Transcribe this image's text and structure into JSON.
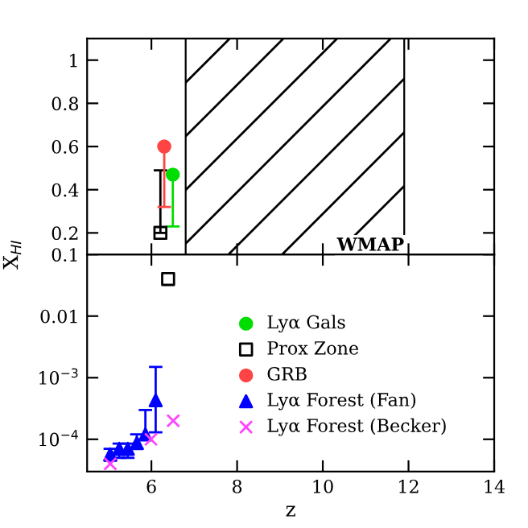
{
  "chart_data": [
    {
      "type": "scatter",
      "xlim": [
        4.5,
        14
      ],
      "xticks": [
        6,
        8,
        10,
        12,
        14
      ],
      "ylim": [
        0.1,
        1.1
      ],
      "yticks": [
        0.2,
        0.4,
        0.6,
        0.8,
        1
      ],
      "tick_labels": "y",
      "legend": "bottom",
      "bands": [
        {
          "axis": "x",
          "from": 6.8,
          "to": 11.9,
          "label": "WMAP"
        }
      ],
      "series": [
        {
          "name": "Lyα Gals",
          "color": "#00dd00",
          "marker": "circle",
          "x": [
            6.5
          ],
          "values": [
            0.47
          ],
          "errors": [
            [
              0.23,
              0.47
            ]
          ]
        },
        {
          "name": "Prox Zone",
          "color": "#000000",
          "marker": "square",
          "x": [
            6.21
          ],
          "values": [
            0.2
          ],
          "errors": [
            [
              0.2,
              0.49
            ]
          ]
        },
        {
          "name": "GRB",
          "color": "#ff4444",
          "marker": "circle",
          "x": [
            6.3
          ],
          "values": [
            0.6
          ],
          "errors": [
            [
              0.32,
              0.6
            ]
          ]
        }
      ]
    },
    {
      "type": "scatter",
      "xlabel": "z",
      "ylabel": "X$_{HI}$",
      "log": "y",
      "xlim": [
        4.5,
        14
      ],
      "xticks": [
        6,
        8,
        10,
        12,
        14
      ],
      "ylim": [
        3e-05,
        0.1
      ],
      "yticks": [
        0.1,
        0.01,
        {
          "value": 0.001,
          "label": "10$^{−3}$"
        },
        {
          "value": 0.0001,
          "label": "10$^{−4}$"
        }
      ],
      "legend": "center right",
      "series": [
        {
          "color": "#000000",
          "marker": "square",
          "x": [
            6.39
          ],
          "values": [
            0.04
          ]
        },
        {
          "name": "Lyα Forest (Fan)",
          "color": "#0000ff",
          "marker": "triangle",
          "x": [
            5.04,
            5.25,
            5.45,
            5.66,
            5.86,
            6.1
          ],
          "values": [
            5.7e-05,
            7e-05,
            7e-05,
            8.7e-05,
            0.00012,
            0.00043
          ],
          "errors": [
            [
              4.5e-05,
              7e-05
            ],
            [
              5e-05,
              8.5e-05
            ],
            [
              5e-05,
              8.5e-05
            ],
            [
              7e-05,
              0.00012
            ],
            [
              0.0001,
              0.0003
            ],
            [
              0.00013,
              0.0015
            ]
          ]
        },
        {
          "name": "Lyα Forest (Becker)",
          "color": "#ff44ff",
          "marker": "cross",
          "x": [
            5.04,
            5.99,
            6.51
          ],
          "values": [
            4e-05,
            0.0001,
            0.0002
          ]
        }
      ]
    }
  ]
}
